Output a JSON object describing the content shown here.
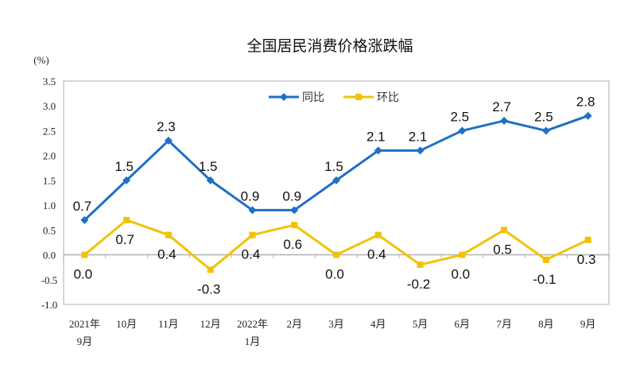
{
  "chart_data": {
    "type": "line",
    "title": "全国居民消费价格涨跌幅",
    "ylabel": "(%)",
    "xlabel": "",
    "ylim": [
      -1.0,
      3.5
    ],
    "yticks": [
      "3.5",
      "3.0",
      "2.5",
      "2.0",
      "1.5",
      "1.0",
      "0.5",
      "0.0",
      "-0.5",
      "-1.0"
    ],
    "ytick_values": [
      3.5,
      3.0,
      2.5,
      2.0,
      1.5,
      1.0,
      0.5,
      0.0,
      -0.5,
      -1.0
    ],
    "categories": [
      [
        "2021年",
        "9月"
      ],
      [
        "10月"
      ],
      [
        "11月"
      ],
      [
        "12月"
      ],
      [
        "2022年",
        "1月"
      ],
      [
        "2月"
      ],
      [
        "3月"
      ],
      [
        "4月"
      ],
      [
        "5月"
      ],
      [
        "6月"
      ],
      [
        "7月"
      ],
      [
        "8月"
      ],
      [
        "9月"
      ]
    ],
    "grid": false,
    "legend_position": "top-center",
    "series": [
      {
        "name": "同比",
        "color": "#1f6fc5",
        "marker": "diamond",
        "label_position": "above",
        "values": [
          0.7,
          1.5,
          2.3,
          1.5,
          0.9,
          0.9,
          1.5,
          2.1,
          2.1,
          2.5,
          2.7,
          2.5,
          2.8
        ]
      },
      {
        "name": "环比",
        "color": "#f2c200",
        "marker": "square",
        "label_position": "below",
        "values": [
          0.0,
          0.7,
          0.4,
          -0.3,
          0.4,
          0.6,
          0.0,
          0.4,
          -0.2,
          0.0,
          0.5,
          -0.1,
          0.3
        ]
      }
    ]
  }
}
